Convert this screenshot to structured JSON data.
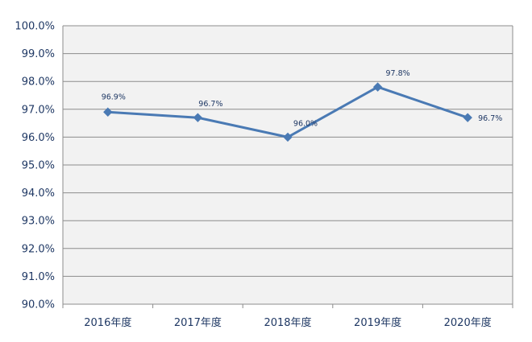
{
  "chart_data": {
    "type": "line",
    "categories": [
      "2016年度",
      "2017年度",
      "2018年度",
      "2019年度",
      "2020年度"
    ],
    "series": [
      {
        "values": [
          96.9,
          96.7,
          96.0,
          97.8,
          96.7
        ],
        "data_labels": [
          "96.9%",
          "96.7%",
          "96.0%",
          "97.8%",
          "96.7%"
        ]
      }
    ],
    "y_ticks": [
      "100.0%",
      "99.0%",
      "98.0%",
      "97.0%",
      "96.0%",
      "95.0%",
      "94.0%",
      "93.0%",
      "92.0%",
      "91.0%",
      "90.0%"
    ],
    "ylim": [
      90,
      100
    ],
    "y_step": 1,
    "grid": true,
    "legend": "none",
    "colors": {
      "line": "#4a7ab4",
      "marker": "#4a7ab4",
      "plot_background": "#f2f2f2",
      "gridline": "#8c8c8c",
      "text": "#1f3864"
    }
  }
}
